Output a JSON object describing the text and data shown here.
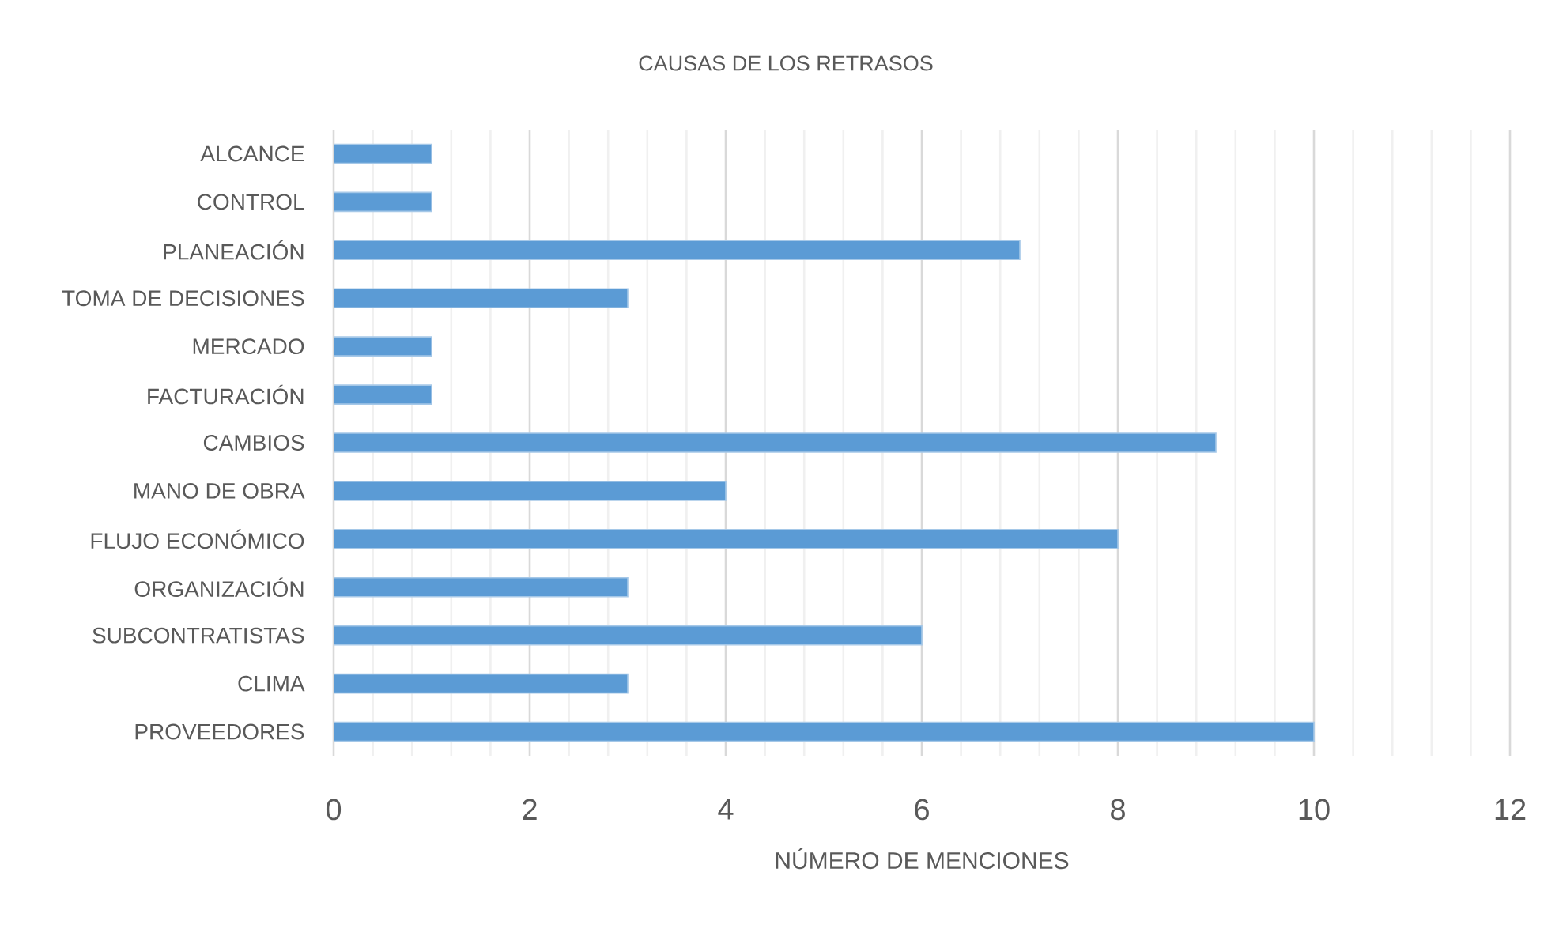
{
  "chart_data": {
    "type": "bar",
    "orientation": "horizontal",
    "title": "CAUSAS DE LOS RETRASOS",
    "xlabel": "NÚMERO DE MENCIONES",
    "categories": [
      "ALCANCE",
      "CONTROL",
      "PLANEACIÓN",
      "TOMA DE DECISIONES",
      "MERCADO",
      "FACTURACIÓN",
      "CAMBIOS",
      "MANO DE OBRA",
      "FLUJO ECONÓMICO",
      "ORGANIZACIÓN",
      "SUBCONTRATISTAS",
      "CLIMA",
      "PROVEEDORES"
    ],
    "values": [
      1,
      1,
      7,
      3,
      1,
      1,
      9,
      4,
      8,
      3,
      6,
      3,
      10
    ],
    "color": "#5b9bd5",
    "xlim": [
      0,
      12
    ],
    "xticks": [
      0,
      {
        "value": 0.4,
        "label": null
      },
      {
        "value": 0.8,
        "label": null
      },
      {
        "value": 1.2,
        "label": null
      },
      {
        "value": 1.6,
        "label": null
      },
      2,
      {
        "value": 2.4,
        "label": null
      },
      {
        "value": 2.8,
        "label": null
      },
      {
        "value": 3.2,
        "label": null
      },
      {
        "value": 3.6,
        "label": null
      },
      4,
      {
        "value": 4.4,
        "label": null
      },
      {
        "value": 4.8,
        "label": null
      },
      {
        "value": 5.2,
        "label": null
      },
      {
        "value": 5.6,
        "label": null
      },
      6,
      {
        "value": 6.4,
        "label": null
      },
      {
        "value": 6.8,
        "label": null
      },
      {
        "value": 7.2,
        "label": null
      },
      {
        "value": 7.6,
        "label": null
      },
      8,
      {
        "value": 8.4,
        "label": null
      },
      {
        "value": 8.8,
        "label": null
      },
      {
        "value": 9.2,
        "label": null
      },
      {
        "value": 9.6,
        "label": null
      },
      10,
      {
        "value": 10.4,
        "label": null
      },
      {
        "value": 10.8,
        "label": null
      },
      {
        "value": 11.2,
        "label": null
      },
      {
        "value": 11.6,
        "label": null
      },
      12
    ],
    "grid": "x"
  }
}
